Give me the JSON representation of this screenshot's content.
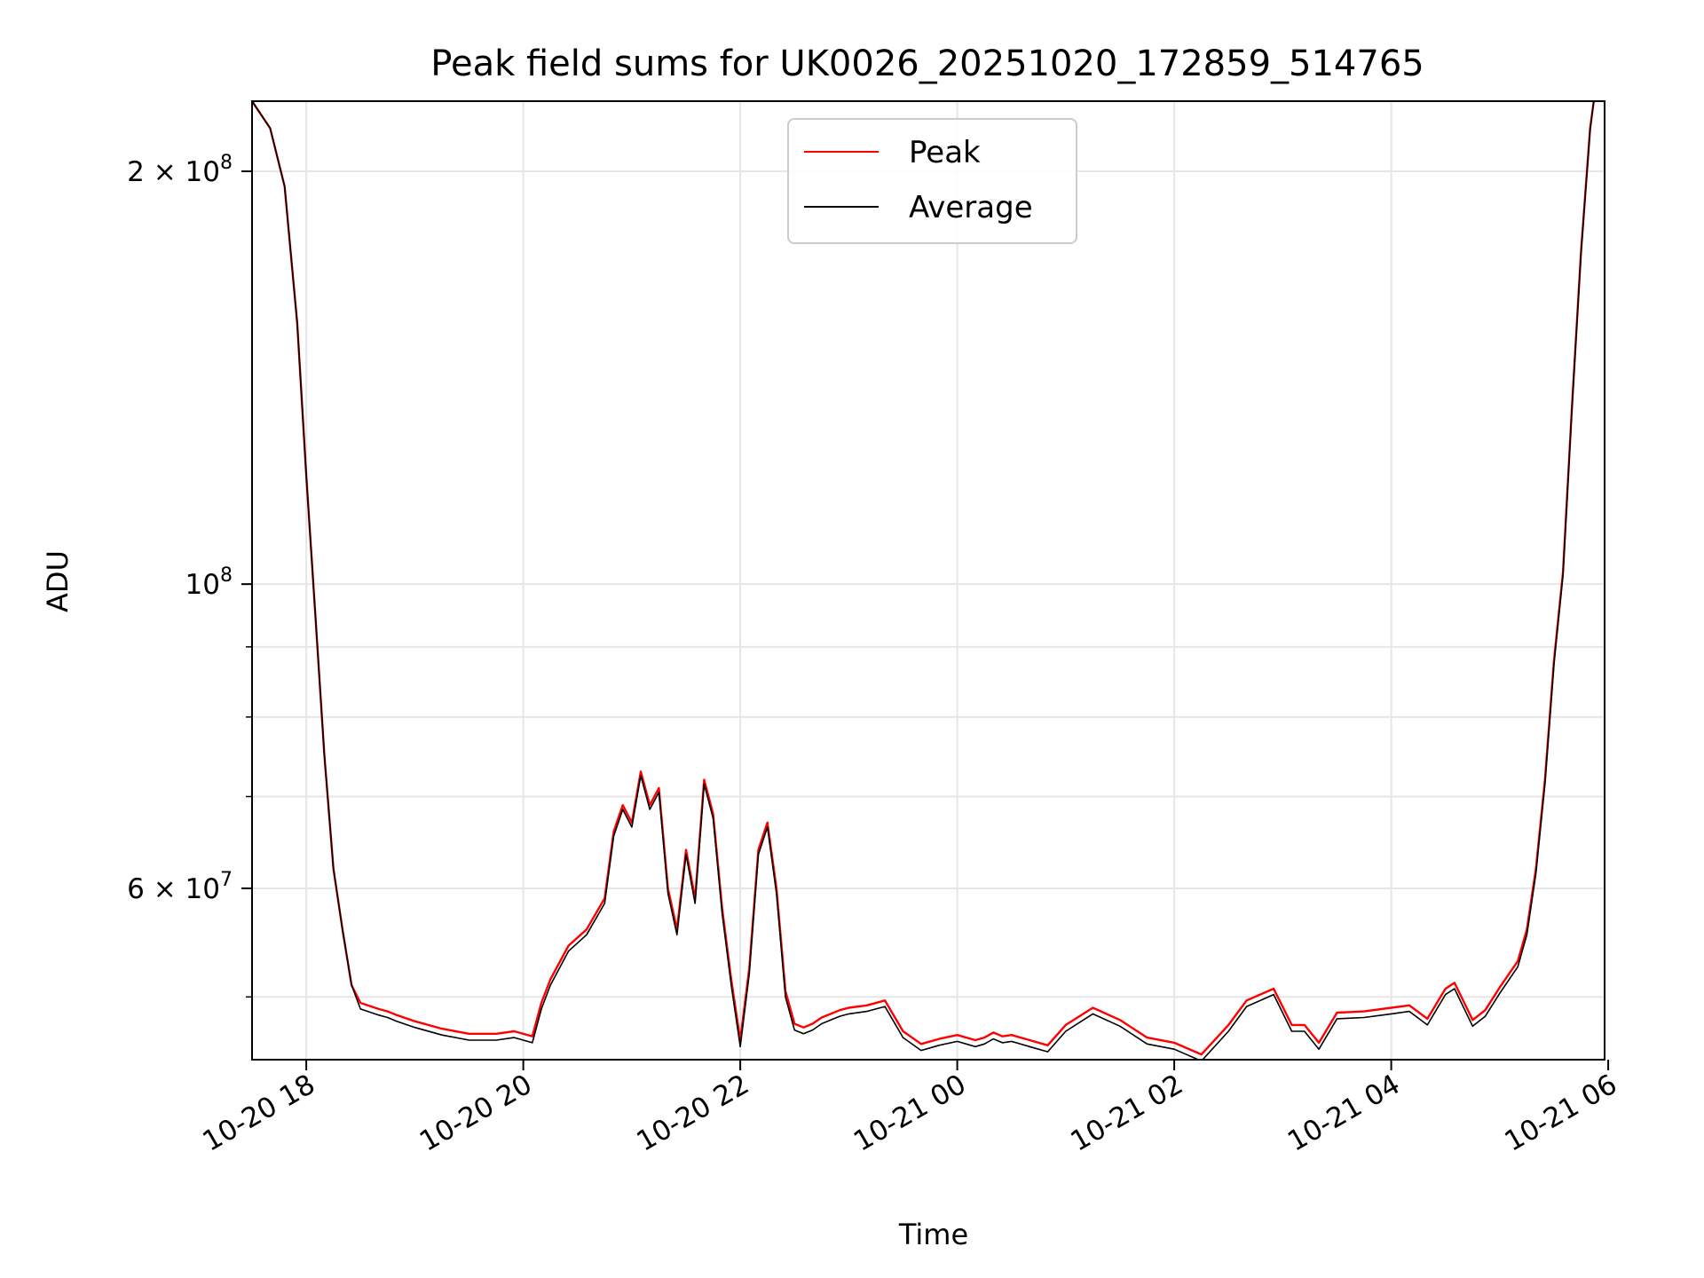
{
  "chart_data": {
    "type": "line",
    "title": "Peak field sums for UK0026_20251020_172859_514765",
    "xlabel": "Time",
    "ylabel": "ADU",
    "y_scale": "log",
    "grid": true,
    "legend_placement": "upper-center",
    "xlim": [
      "2025-10-20 17:30",
      "2025-10-21 05:58"
    ],
    "ylim": [
      45000000,
      225000000
    ],
    "x_ticks": [
      {
        "value": "2025-10-20 18:00",
        "label": "10-20 18"
      },
      {
        "value": "2025-10-20 20:00",
        "label": "10-20 20"
      },
      {
        "value": "2025-10-20 22:00",
        "label": "10-20 22"
      },
      {
        "value": "2025-10-21 00:00",
        "label": "10-21 00"
      },
      {
        "value": "2025-10-21 02:00",
        "label": "10-21 02"
      },
      {
        "value": "2025-10-21 04:00",
        "label": "10-21 04"
      },
      {
        "value": "2025-10-21 06:00",
        "label": "10-21 06"
      }
    ],
    "y_major_ticks": [
      {
        "value": 200000000,
        "base": "2 × 10",
        "exp": "8"
      },
      {
        "value": 100000000,
        "base": "10",
        "exp": "8"
      },
      {
        "value": 60000000,
        "base": "6 × 10",
        "exp": "7"
      }
    ],
    "y_minor_ticks": [
      50000000,
      70000000,
      80000000,
      90000000
    ],
    "x": [
      "2025-10-20 17:30",
      "2025-10-20 17:40",
      "2025-10-20 17:48",
      "2025-10-20 17:55",
      "2025-10-20 18:00",
      "2025-10-20 18:05",
      "2025-10-20 18:10",
      "2025-10-20 18:15",
      "2025-10-20 18:20",
      "2025-10-20 18:25",
      "2025-10-20 18:30",
      "2025-10-20 18:40",
      "2025-10-20 18:45",
      "2025-10-20 18:50",
      "2025-10-20 19:00",
      "2025-10-20 19:15",
      "2025-10-20 19:30",
      "2025-10-20 19:45",
      "2025-10-20 19:55",
      "2025-10-20 20:05",
      "2025-10-20 20:10",
      "2025-10-20 20:15",
      "2025-10-20 20:25",
      "2025-10-20 20:35",
      "2025-10-20 20:45",
      "2025-10-20 20:50",
      "2025-10-20 20:55",
      "2025-10-20 21:00",
      "2025-10-20 21:05",
      "2025-10-20 21:10",
      "2025-10-20 21:15",
      "2025-10-20 21:20",
      "2025-10-20 21:25",
      "2025-10-20 21:30",
      "2025-10-20 21:35",
      "2025-10-20 21:40",
      "2025-10-20 21:45",
      "2025-10-20 21:50",
      "2025-10-20 21:55",
      "2025-10-20 22:00",
      "2025-10-20 22:05",
      "2025-10-20 22:10",
      "2025-10-20 22:15",
      "2025-10-20 22:20",
      "2025-10-20 22:25",
      "2025-10-20 22:30",
      "2025-10-20 22:35",
      "2025-10-20 22:40",
      "2025-10-20 22:45",
      "2025-10-20 22:50",
      "2025-10-20 22:55",
      "2025-10-20 23:00",
      "2025-10-20 23:10",
      "2025-10-20 23:20",
      "2025-10-20 23:30",
      "2025-10-20 23:40",
      "2025-10-20 23:50",
      "2025-10-21 00:00",
      "2025-10-21 00:10",
      "2025-10-21 00:15",
      "2025-10-21 00:20",
      "2025-10-21 00:25",
      "2025-10-21 00:30",
      "2025-10-21 00:40",
      "2025-10-21 00:50",
      "2025-10-21 01:00",
      "2025-10-21 01:15",
      "2025-10-21 01:30",
      "2025-10-21 01:45",
      "2025-10-21 02:00",
      "2025-10-21 02:15",
      "2025-10-21 02:30",
      "2025-10-21 02:40",
      "2025-10-21 02:55",
      "2025-10-21 03:05",
      "2025-10-21 03:12",
      "2025-10-21 03:20",
      "2025-10-21 03:30",
      "2025-10-21 03:45",
      "2025-10-21 04:00",
      "2025-10-21 04:10",
      "2025-10-21 04:20",
      "2025-10-21 04:30",
      "2025-10-21 04:35",
      "2025-10-21 04:45",
      "2025-10-21 04:52",
      "2025-10-21 05:00",
      "2025-10-21 05:10",
      "2025-10-21 05:15",
      "2025-10-21 05:20",
      "2025-10-21 05:25",
      "2025-10-21 05:30",
      "2025-10-21 05:35",
      "2025-10-21 05:40",
      "2025-10-21 05:45",
      "2025-10-21 05:50",
      "2025-10-21 05:52"
    ],
    "series": [
      {
        "name": "Peak",
        "color": "#ff0000",
        "values": [
          225000000,
          215000000,
          195000000,
          155000000,
          120000000,
          95000000,
          75000000,
          62000000,
          56000000,
          51000000,
          49500000,
          49000000,
          48800000,
          48500000,
          48000000,
          47400000,
          47000000,
          47000000,
          47200000,
          46800000,
          49500000,
          51500000,
          54500000,
          56000000,
          59000000,
          66000000,
          69000000,
          67000000,
          73000000,
          69000000,
          71000000,
          60000000,
          56000000,
          64000000,
          59000000,
          72000000,
          68000000,
          58000000,
          51500000,
          46500000,
          52500000,
          64000000,
          67000000,
          60000000,
          50500000,
          47800000,
          47500000,
          47800000,
          48300000,
          48600000,
          48900000,
          49100000,
          49300000,
          49700000,
          47200000,
          46200000,
          46600000,
          46900000,
          46500000,
          46700000,
          47100000,
          46800000,
          46900000,
          46500000,
          46100000,
          47700000,
          49100000,
          48100000,
          46700000,
          46300000,
          45400000,
          47700000,
          49700000,
          50700000,
          47700000,
          47700000,
          46300000,
          48700000,
          48800000,
          49100000,
          49300000,
          48200000,
          50700000,
          51200000,
          48100000,
          48900000,
          50800000,
          53100000,
          56000000,
          62000000,
          72000000,
          88000000,
          102000000,
          135000000,
          175000000,
          215000000,
          225000000
        ]
      },
      {
        "name": "Average",
        "color": "#000000",
        "values": [
          225000000,
          215000000,
          195000000,
          155000000,
          120000000,
          95000000,
          75000000,
          62000000,
          56000000,
          51000000,
          49000000,
          48500000,
          48300000,
          48000000,
          47500000,
          46900000,
          46500000,
          46500000,
          46700000,
          46300000,
          49000000,
          51000000,
          54000000,
          55500000,
          58500000,
          65500000,
          68500000,
          66500000,
          72500000,
          68500000,
          70500000,
          59500000,
          55500000,
          63500000,
          58500000,
          71500000,
          67500000,
          57500000,
          51000000,
          46000000,
          52000000,
          63500000,
          66500000,
          59500000,
          50000000,
          47300000,
          47000000,
          47300000,
          47800000,
          48100000,
          48400000,
          48600000,
          48800000,
          49200000,
          46700000,
          45700000,
          46100000,
          46400000,
          46000000,
          46200000,
          46600000,
          46300000,
          46400000,
          46000000,
          45600000,
          47200000,
          48600000,
          47600000,
          46200000,
          45800000,
          44900000,
          47200000,
          49200000,
          50200000,
          47200000,
          47200000,
          45800000,
          48200000,
          48300000,
          48600000,
          48800000,
          47700000,
          50200000,
          50700000,
          47600000,
          48400000,
          50300000,
          52600000,
          55500000,
          61500000,
          71500000,
          87500000,
          101500000,
          134500000,
          174500000,
          214500000,
          225000000
        ]
      }
    ]
  }
}
